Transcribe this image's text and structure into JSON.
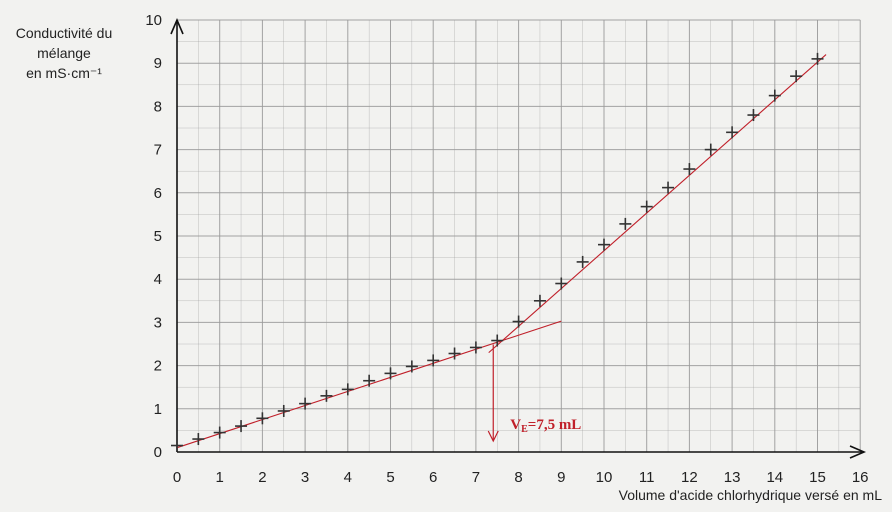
{
  "chart_data": {
    "type": "scatter",
    "ylabel_lines": [
      "Conductivité du",
      "mélange",
      "en mS·cm⁻¹"
    ],
    "xlabel": "Volume d'acide chlorhydrique versé en mL",
    "xlim": [
      0,
      16
    ],
    "ylim": [
      0,
      10
    ],
    "x_ticks": [
      "0",
      "1",
      "2",
      "3",
      "4",
      "5",
      "6",
      "7",
      "8",
      "9",
      "10",
      "11",
      "12",
      "13",
      "14",
      "15",
      "16"
    ],
    "y_ticks": [
      "0",
      "1",
      "2",
      "3",
      "4",
      "5",
      "6",
      "7",
      "8",
      "9",
      "10"
    ],
    "grid": true,
    "series": [
      {
        "x": [
          0,
          0.5,
          1,
          1.5,
          2,
          2.5,
          3,
          3.5,
          4,
          4.5,
          5,
          5.5,
          6,
          6.5,
          7,
          7.5,
          8,
          8.5,
          9,
          9.5,
          10,
          10.5,
          11,
          11.5,
          12,
          12.5,
          13,
          13.5,
          14,
          14.5,
          15
        ],
        "y": [
          0.15,
          0.3,
          0.45,
          0.6,
          0.78,
          0.95,
          1.12,
          1.3,
          1.45,
          1.65,
          1.82,
          1.98,
          2.12,
          2.28,
          2.42,
          2.58,
          3.02,
          3.5,
          3.9,
          4.4,
          4.8,
          5.28,
          5.68,
          6.12,
          6.55,
          7.0,
          7.4,
          7.8,
          8.25,
          8.7,
          9.1
        ]
      }
    ],
    "fit_lines": [
      {
        "x": [
          0,
          9
        ],
        "y": [
          0.1,
          3.03
        ]
      },
      {
        "x": [
          7.3,
          15.2
        ],
        "y": [
          2.3,
          9.2
        ]
      }
    ],
    "equivalence": {
      "x": 7.5,
      "y": 2.58,
      "label": "VE=7,5 mL",
      "label_main": "V",
      "label_sub": "E",
      "label_rest": "=7,5 mL"
    },
    "colors": {
      "marker": "#333333",
      "fit": "#c0202a",
      "grid": "#9a9a9a",
      "axis": "#111111",
      "background": "#f2f2f0"
    }
  }
}
